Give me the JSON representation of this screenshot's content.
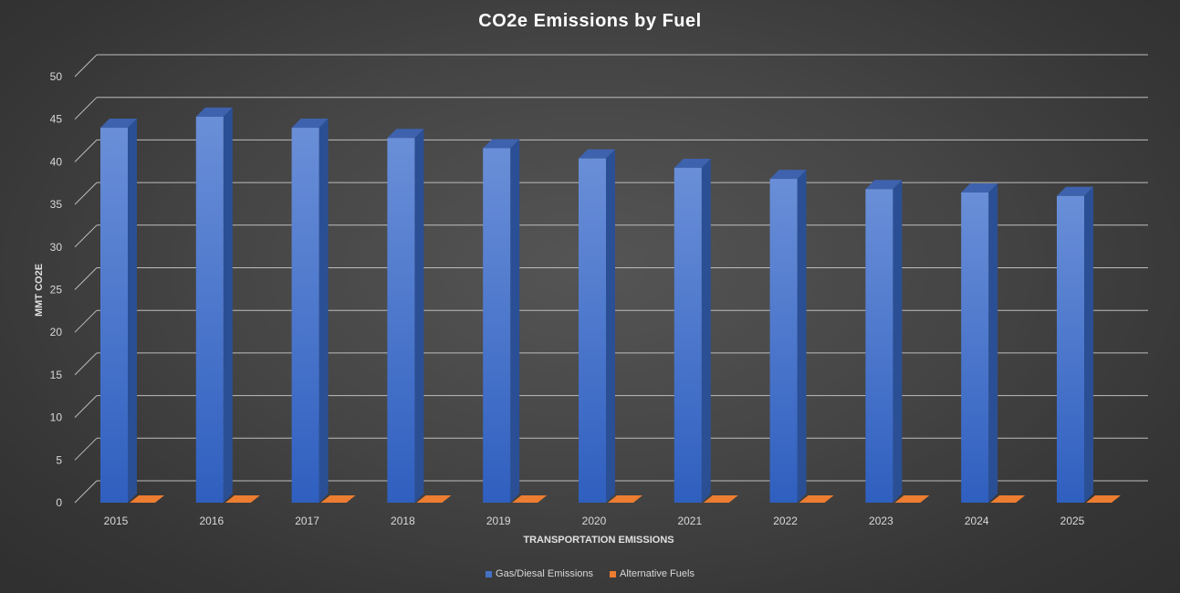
{
  "chart_data": {
    "type": "bar",
    "title": "CO2e Emissions by Fuel",
    "xlabel": "TRANSPORTATION EMISSIONS",
    "ylabel": "MMT CO2E",
    "ylim": [
      0,
      50
    ],
    "yticks": [
      "0",
      "5",
      "10",
      "15",
      "20",
      "25",
      "30",
      "35",
      "40",
      "45",
      "50"
    ],
    "categories": [
      "2015",
      "2016",
      "2017",
      "2018",
      "2019",
      "2020",
      "2021",
      "2022",
      "2023",
      "2024",
      "2025"
    ],
    "series": [
      {
        "name": "Gas/Diesal Emissions",
        "color": "#4472c4",
        "values": [
          44.0,
          45.3,
          44.0,
          42.8,
          41.6,
          40.4,
          39.3,
          38.0,
          36.8,
          36.4,
          36.0
        ]
      },
      {
        "name": "Alternative Fuels",
        "color": "#ed7d31",
        "values": [
          0,
          0,
          0,
          0,
          0,
          0,
          0,
          0,
          0,
          0,
          0
        ]
      }
    ],
    "grid": true,
    "legend_position": "bottom",
    "style": "3d-clustered-column"
  }
}
